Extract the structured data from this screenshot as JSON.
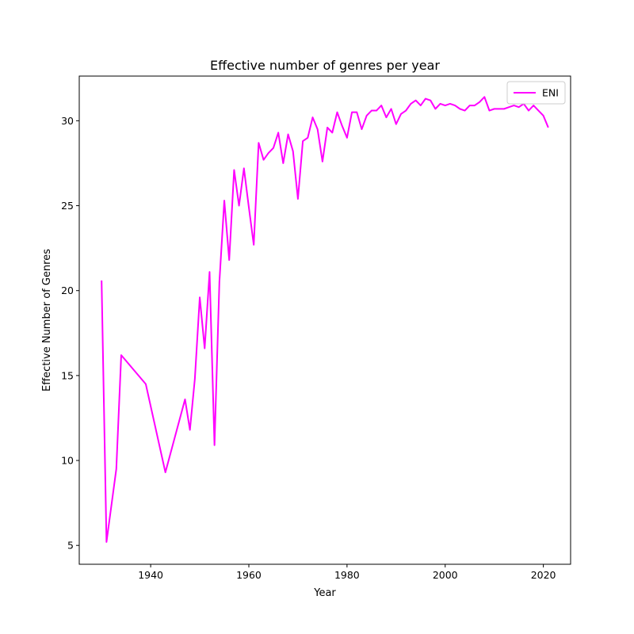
{
  "chart_data": {
    "type": "line",
    "title": "Effective number of genres per year",
    "xlabel": "Year",
    "ylabel": "Effective Number of Genres",
    "xlim": [
      1925.45,
      2025.55
    ],
    "ylim": [
      3.89,
      32.63
    ],
    "x_ticks": [
      1940,
      1960,
      1980,
      2000,
      2020
    ],
    "y_ticks": [
      5,
      10,
      15,
      20,
      25,
      30
    ],
    "grid": false,
    "legend_position": "top-right",
    "series": [
      {
        "name": "ENI",
        "color": "#ff00ff",
        "x": [
          1930,
          1931,
          1933,
          1934,
          1939,
          1943,
          1947,
          1948,
          1949,
          1950,
          1951,
          1952,
          1953,
          1954,
          1955,
          1956,
          1957,
          1958,
          1959,
          1960,
          1961,
          1962,
          1963,
          1964,
          1965,
          1966,
          1967,
          1968,
          1969,
          1970,
          1971,
          1972,
          1973,
          1974,
          1975,
          1976,
          1977,
          1978,
          1979,
          1980,
          1981,
          1982,
          1983,
          1984,
          1985,
          1986,
          1987,
          1988,
          1989,
          1990,
          1991,
          1992,
          1993,
          1994,
          1995,
          1996,
          1997,
          1998,
          1999,
          2000,
          2001,
          2002,
          2003,
          2004,
          2005,
          2006,
          2007,
          2008,
          2009,
          2010,
          2011,
          2012,
          2013,
          2014,
          2015,
          2016,
          2017,
          2018,
          2019,
          2020,
          2021
        ],
        "y": [
          20.6,
          5.2,
          9.5,
          16.2,
          14.5,
          9.3,
          13.6,
          11.8,
          14.8,
          19.6,
          16.6,
          21.1,
          10.9,
          20.5,
          25.3,
          21.8,
          27.1,
          25.0,
          27.2,
          24.9,
          22.7,
          28.7,
          27.7,
          28.1,
          28.4,
          29.3,
          27.5,
          29.2,
          28.2,
          25.4,
          28.8,
          29.0,
          30.2,
          29.5,
          27.6,
          29.6,
          29.3,
          30.5,
          29.7,
          29.0,
          30.5,
          30.5,
          29.5,
          30.3,
          30.6,
          30.6,
          30.9,
          30.2,
          30.7,
          29.8,
          30.4,
          30.6,
          31.0,
          31.2,
          30.9,
          31.3,
          31.2,
          30.7,
          31.0,
          30.9,
          31.0,
          30.9,
          30.7,
          30.6,
          30.9,
          30.9,
          31.1,
          31.4,
          30.6,
          30.7,
          30.7,
          30.7,
          30.8,
          30.9,
          30.8,
          31.0,
          30.6,
          30.9,
          30.6,
          30.3,
          29.6
        ]
      }
    ]
  }
}
